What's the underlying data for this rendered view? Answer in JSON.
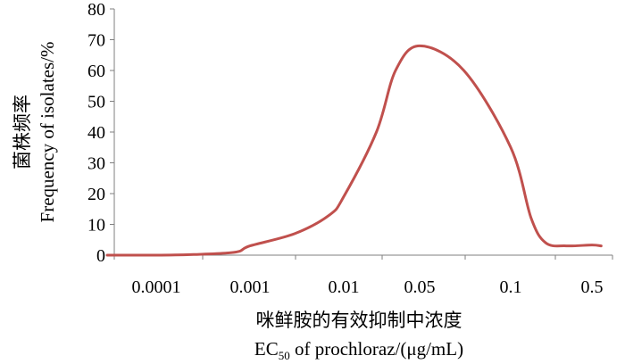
{
  "chart_data": {
    "type": "line",
    "ylabel_cn": "菌株频率",
    "ylabel_en": "Frequency of isolates/%",
    "xlabel_cn": "咪鲜胺的有效抑制中浓度",
    "xlabel_en_prefix": "EC",
    "xlabel_en_sub": "50",
    "xlabel_en_suffix": " of prochloraz/(μg/mL)",
    "ylim": [
      0,
      80
    ],
    "yticks": [
      "0",
      "10",
      "20",
      "30",
      "40",
      "50",
      "60",
      "70",
      "80"
    ],
    "xticks": [
      "0.0001",
      "0.001",
      "0.01",
      "0.05",
      "0.1",
      "0.5"
    ],
    "grid": false,
    "series": [
      {
        "color": "#c0504d",
        "points": [
          {
            "x": 3e-05,
            "y": 0
          },
          {
            "x": 0.0001,
            "y": 0
          },
          {
            "x": 0.00025,
            "y": 0.2
          },
          {
            "x": 0.0007,
            "y": 1
          },
          {
            "x": 0.001,
            "y": 3
          },
          {
            "x": 0.003,
            "y": 7
          },
          {
            "x": 0.007,
            "y": 13
          },
          {
            "x": 0.01,
            "y": 19
          },
          {
            "x": 0.02,
            "y": 40
          },
          {
            "x": 0.03,
            "y": 60
          },
          {
            "x": 0.05,
            "y": 68
          },
          {
            "x": 0.07,
            "y": 60
          },
          {
            "x": 0.1,
            "y": 35
          },
          {
            "x": 0.15,
            "y": 12
          },
          {
            "x": 0.2,
            "y": 4
          },
          {
            "x": 0.3,
            "y": 3
          },
          {
            "x": 0.5,
            "y": 3.3
          },
          {
            "x": 0.6,
            "y": 3
          }
        ]
      }
    ]
  }
}
